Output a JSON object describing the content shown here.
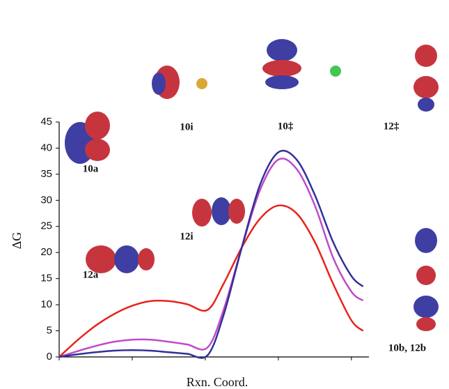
{
  "chart_data": {
    "type": "line",
    "x_label": "Rxn. Coord.",
    "y_label": "ΔG",
    "x": [
      0,
      0.25,
      0.5,
      0.75,
      1.0,
      1.25,
      1.5,
      1.75,
      2.03,
      2.25,
      2.5,
      2.75,
      3.0,
      3.25,
      3.5,
      3.75,
      4.0,
      4.16
    ],
    "series": [
      {
        "color": "#e8231b",
        "values": [
          0,
          3.2,
          6,
          8.2,
          9.8,
          10.7,
          10.7,
          10.1,
          9.0,
          14,
          21,
          26.5,
          29,
          27.5,
          22,
          14,
          7,
          5
        ]
      },
      {
        "color": "#c04ac8",
        "values": [
          0,
          1.1,
          2.1,
          2.9,
          3.3,
          3.3,
          2.9,
          2.4,
          1.8,
          9,
          21,
          32,
          37.8,
          36,
          29,
          19,
          12.5,
          10.8
        ]
      },
      {
        "color": "#30309a",
        "values": [
          0,
          0.5,
          0.9,
          1.2,
          1.3,
          1.2,
          0.9,
          0.6,
          0.3,
          8,
          21,
          33,
          39.2,
          37.8,
          31,
          22,
          15.5,
          13.5
        ]
      }
    ],
    "xlim": [
      0,
      4.24
    ],
    "xticks": [
      0,
      1,
      2,
      3,
      4
    ],
    "ylim": [
      0,
      45
    ],
    "yticks": [
      0,
      5,
      10,
      15,
      20,
      25,
      30,
      35,
      40,
      45
    ],
    "annotations": [
      "10a",
      "10i",
      "10‡",
      "12‡",
      "12a",
      "12i",
      "10b, 12b"
    ]
  }
}
